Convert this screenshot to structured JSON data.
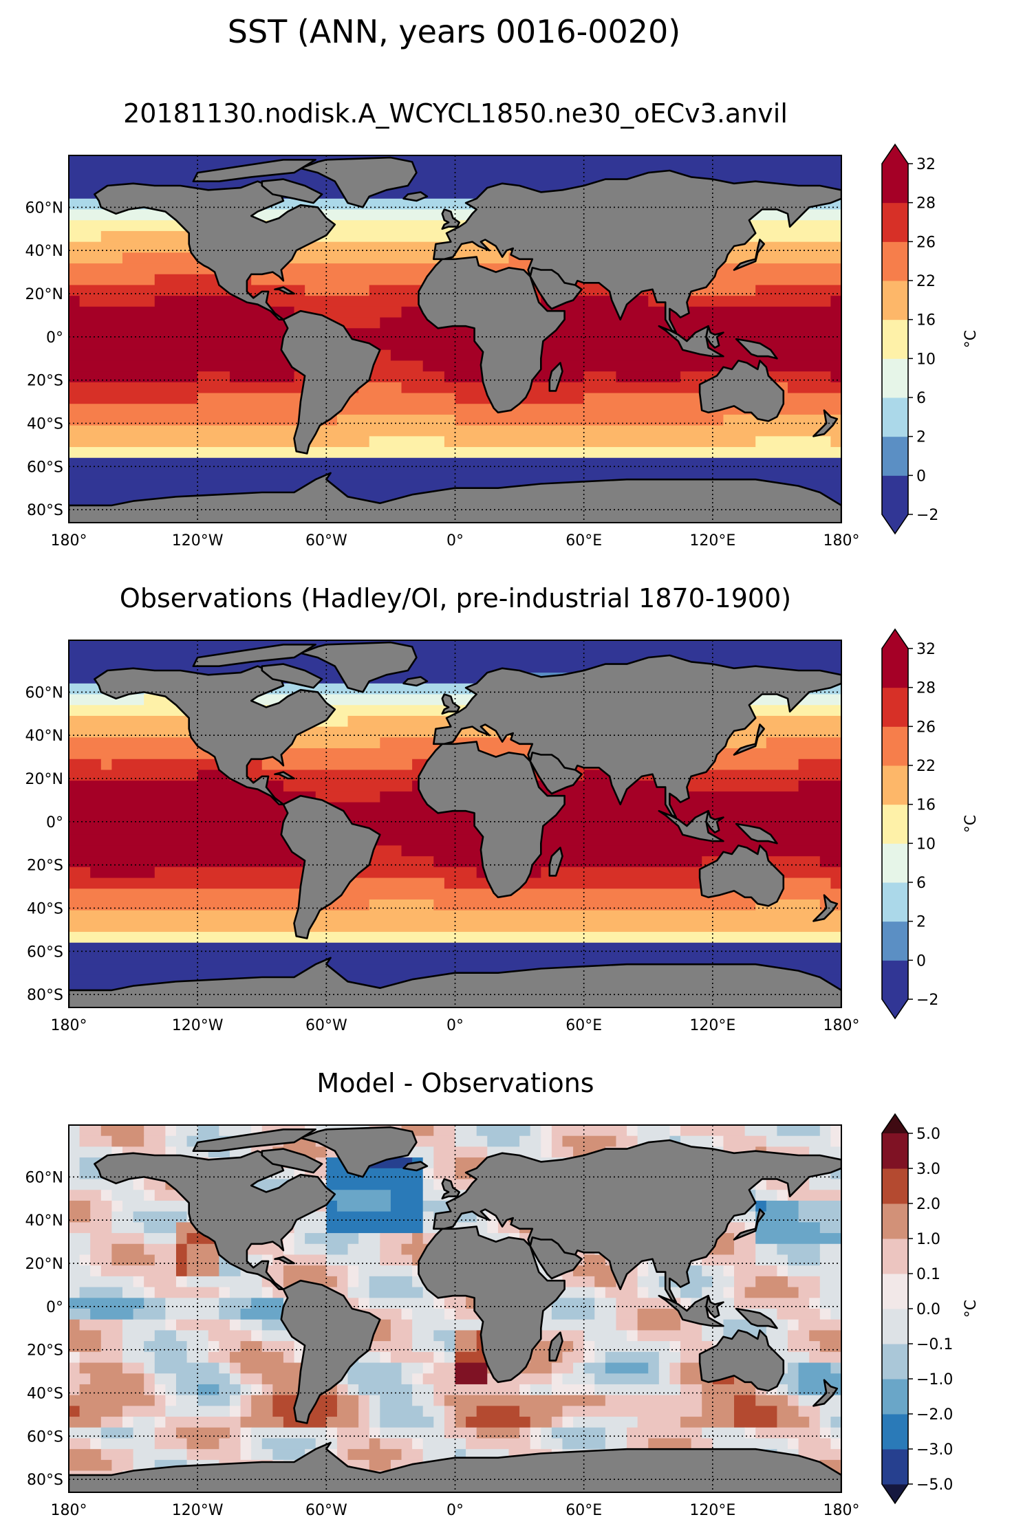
{
  "figure": {
    "title": "SST (ANN, years 0016-0020)"
  },
  "panels": [
    {
      "kind": "model",
      "title": "20181130.nodisk.A_WCYCL1850.ne30_oECv3.anvil",
      "colorbar": {
        "unit": "°C",
        "tick_labels": [
          "−2",
          "0",
          "2",
          "6",
          "10",
          "16",
          "22",
          "26",
          "28",
          "32"
        ],
        "colors": [
          "#313695",
          "#5b8fc4",
          "#abd8e9",
          "#e6f5e8",
          "#fef1a8",
          "#fdb769",
          "#f67e4b",
          "#d73027",
          "#a50026"
        ],
        "extend_low_color": "#313695",
        "extend_high_color": "#a50026"
      }
    },
    {
      "kind": "observations",
      "title": "Observations (Hadley/OI, pre-industrial 1870-1900)",
      "colorbar": {
        "unit": "°C",
        "tick_labels": [
          "−2",
          "0",
          "2",
          "6",
          "10",
          "16",
          "22",
          "26",
          "28",
          "32"
        ],
        "colors": [
          "#313695",
          "#5b8fc4",
          "#abd8e9",
          "#e6f5e8",
          "#fef1a8",
          "#fdb769",
          "#f67e4b",
          "#d73027",
          "#a50026"
        ],
        "extend_low_color": "#313695",
        "extend_high_color": "#a50026"
      }
    },
    {
      "kind": "difference",
      "title": "Model - Observations",
      "colorbar": {
        "unit": "°C",
        "tick_labels": [
          "−5.0",
          "−3.0",
          "−2.0",
          "−1.0",
          "−0.1",
          "0.0",
          "0.1",
          "1.0",
          "2.0",
          "3.0",
          "5.0"
        ],
        "colors": [
          "#26408f",
          "#2a7ab8",
          "#6aa6c8",
          "#aac7d8",
          "#dde2e6",
          "#f2e8e8",
          "#ecc5c0",
          "#d29178",
          "#b44a30",
          "#7f1224"
        ],
        "extend_low_color": "#15183f",
        "extend_high_color": "#3f0a12"
      }
    }
  ],
  "map": {
    "lon_tick_labels": [
      "180°",
      "120°W",
      "60°W",
      "0°",
      "60°E",
      "120°E",
      "180°"
    ],
    "lat_tick_labels": [
      "60°N",
      "40°N",
      "20°N",
      "0°",
      "20°S",
      "40°S",
      "60°S",
      "80°S"
    ],
    "land_color": "#808080",
    "coastline_color": "#000000"
  }
}
